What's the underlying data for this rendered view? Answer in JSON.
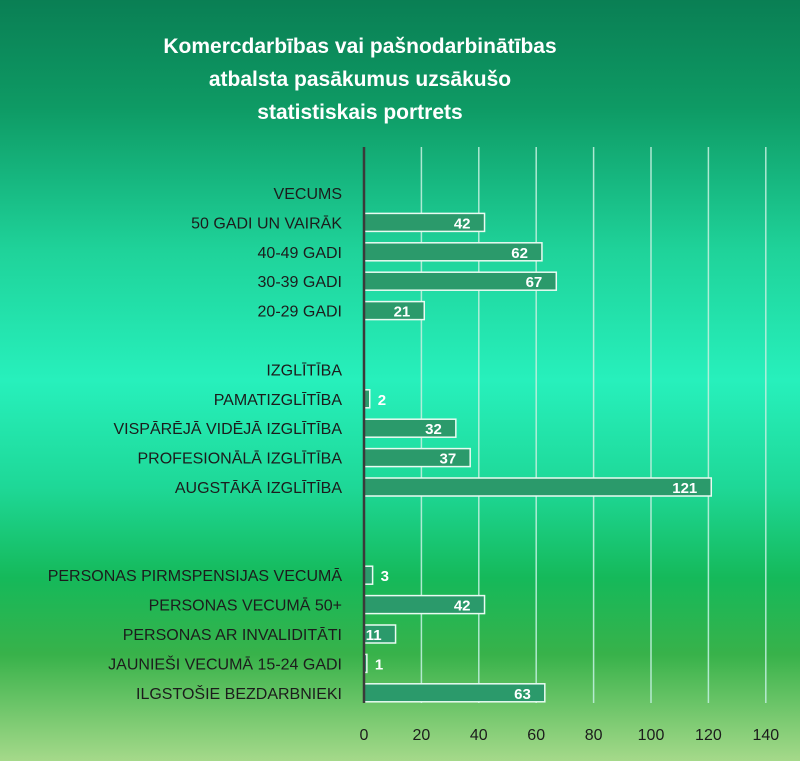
{
  "chart_data": {
    "type": "bar",
    "orientation": "horizontal",
    "title": "Komercdarbības vai pašnodarbinātības\natbalsta pasākumus uzsākušo\nstatistiskais portrets",
    "xlim": [
      0,
      140
    ],
    "x_ticks": [
      "0",
      "20",
      "40",
      "60",
      "80",
      "100",
      "120",
      "140"
    ],
    "grid": true,
    "bar_color": "#2b9a6b",
    "rows": [
      {
        "label": "VECUMS",
        "value": null
      },
      {
        "label": "50 GADI UN VAIRĀK",
        "value": 42
      },
      {
        "label": "40-49 GADI",
        "value": 62
      },
      {
        "label": "30-39 GADI",
        "value": 67
      },
      {
        "label": "20-29 GADI",
        "value": 21
      },
      {
        "label": "",
        "value": null
      },
      {
        "label": "IZGLĪTĪBA",
        "value": null
      },
      {
        "label": "PAMATIZGLĪTĪBA",
        "value": 2
      },
      {
        "label": "VISPĀRĒJĀ VIDĒJĀ IZGLĪTĪBA",
        "value": 32
      },
      {
        "label": "PROFESIONĀLĀ IZGLĪTĪBA",
        "value": 37
      },
      {
        "label": "AUGSTĀKĀ IZGLĪTĪBA",
        "value": 121
      },
      {
        "label": "",
        "value": null
      },
      {
        "label": "",
        "value": null
      },
      {
        "label": "PERSONAS PIRMSPENSIJAS VECUMĀ",
        "value": 3
      },
      {
        "label": "PERSONAS VECUMĀ 50+",
        "value": 42
      },
      {
        "label": "PERSONAS AR INVALIDITĀTI",
        "value": 11
      },
      {
        "label": "JAUNIEŠI  VECUMĀ 15-24 GADI",
        "value": 1
      },
      {
        "label": "ILGSTOŠIE BEZDARBNIEKI",
        "value": 63
      }
    ]
  }
}
